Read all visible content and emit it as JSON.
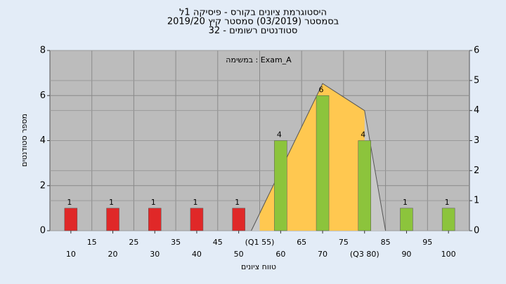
{
  "chart_data": {
    "type": "histogram",
    "title": "היסטוגרמת ציונים בקורס - פיסיקה 1ל",
    "subtitle": "בסמסטר (03/2019) סמסטר קיץ 2019/20",
    "subtitle2": "סטודנטים רשומים - 32",
    "annotation": "במשימה : Exam_A",
    "x_label": "טווח ציונים",
    "y_label": "מספר סטודנטים",
    "x": [
      10,
      20,
      30,
      40,
      50,
      60,
      70,
      80,
      90,
      100
    ],
    "values": [
      1,
      1,
      1,
      1,
      1,
      4,
      6,
      4,
      1,
      1
    ],
    "colors": [
      "#e02828",
      "#e02828",
      "#e02828",
      "#e02828",
      "#e02828",
      "#8cc43c",
      "#8cc43c",
      "#8cc43c",
      "#8cc43c",
      "#8cc43c"
    ],
    "curve": {
      "axis": "y2",
      "x": [
        53,
        70,
        80,
        85
      ],
      "values": [
        0,
        4.9,
        4,
        0
      ],
      "color": "#c8c8c8",
      "iqr_color": "#ffc850"
    },
    "q1": 55,
    "q3": 80,
    "xlim": [
      5,
      105
    ],
    "xticks_minor": [
      15,
      25,
      35,
      45,
      {
        "value": 55,
        "label": "(Q1 55)"
      },
      65,
      75,
      85,
      95
    ],
    "xticks": [
      10,
      20,
      30,
      40,
      50,
      60,
      70,
      {
        "value": 80,
        "label": "(Q3 80)"
      },
      90,
      100
    ],
    "ylim": [
      0,
      8
    ],
    "yticks": [
      0,
      2,
      4,
      6,
      8
    ],
    "y2lim": [
      0,
      6
    ],
    "y2ticks": [
      0,
      1,
      2,
      3,
      4,
      5,
      6
    ],
    "grid": true
  }
}
